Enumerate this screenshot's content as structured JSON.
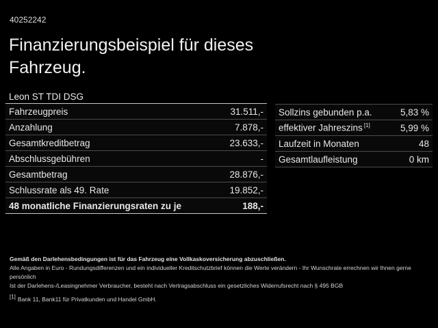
{
  "page": {
    "vehicle_id": "40252242",
    "title_line1": "Finanzierungsbeispiel für dieses",
    "title_line2": "Fahrzeug.",
    "vehicle_name": "Leon ST TDI DSG"
  },
  "left_table": {
    "rows": [
      {
        "label": "Fahrzeugpreis",
        "value": "31.511,-"
      },
      {
        "label": "Anzahlung",
        "value": "7.878,-"
      },
      {
        "label": "Gesamtkreditbetrag",
        "value": "23.633,-"
      },
      {
        "label": "Abschlussgebühren",
        "value": "-"
      },
      {
        "label": "Gesamtbetrag",
        "value": "28.876,-"
      },
      {
        "label": "Schlussrate als 49. Rate",
        "value": "19.852,-"
      },
      {
        "label": "48 monatliche Finanzierungsraten zu je",
        "value": "188,-"
      }
    ]
  },
  "right_table": {
    "rows": [
      {
        "label": "Sollzins gebunden p.a.",
        "value": "5,83 %"
      },
      {
        "label": "effektiver Jahreszins",
        "sup": "[1]",
        "value": "5,99 %"
      },
      {
        "label": "Laufzeit in Monaten",
        "value": "48"
      },
      {
        "label": "Gesamtlaufleistung",
        "value": "0 km"
      }
    ]
  },
  "footer": {
    "line1": "Gemäß den Darlehensbedingungen ist für das Fahrzeug eine Vollkaskoversicherung abzuschließen.",
    "line2": "Alle Angaben in Euro - Rundungsdifferenzen und ein individueller Kreditschutzbrief können die Werte verändern - Ihr Wunschrate errechnen wir Ihnen gerne persönlich",
    "line3": "Ist der Darlehens-/Leasingnehmer Verbraucher, besteht nach Vertragsabschluss ein gesetzliches Widerrufsrecht nach § 495 BGB",
    "footnote_marker": "[1]",
    "footnote_text": "Bank 11, Bank11 für Privatkunden und Handel GmbH."
  },
  "colors": {
    "background": "#000000",
    "text": "#e8e8e8",
    "separator": "#4c4c4c",
    "separator_strong": "#c9c9c9"
  }
}
